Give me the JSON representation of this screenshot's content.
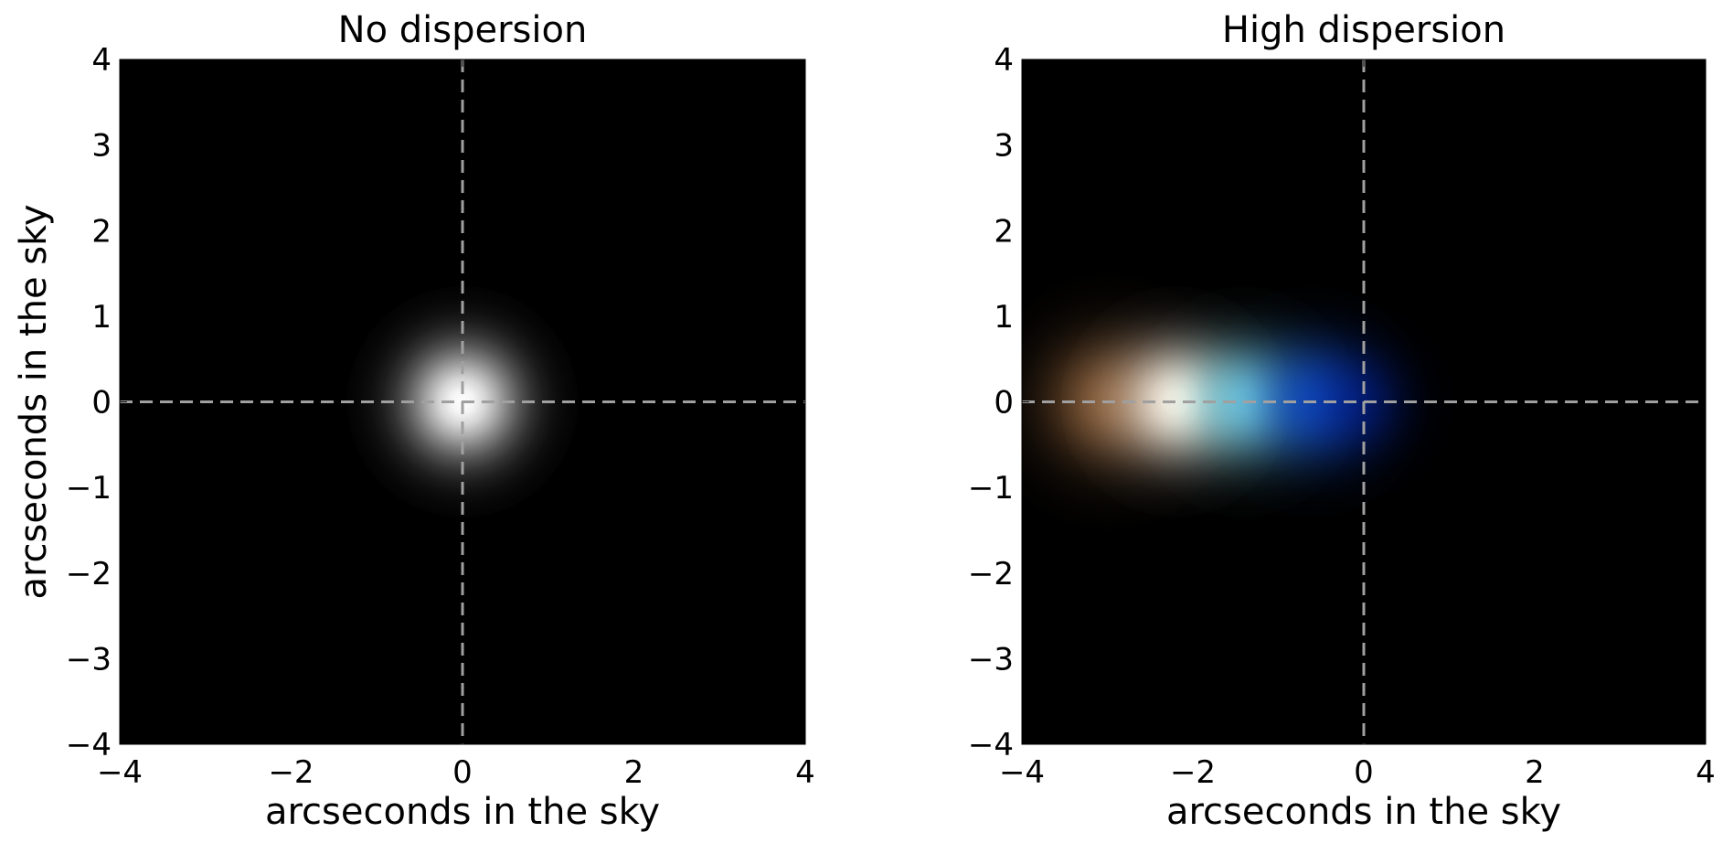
{
  "figure": {
    "background_color": "#ffffff",
    "plot_background_color": "#000000",
    "crosshair_color": "#a0a0a0",
    "crosshair_style": "dashed"
  },
  "chart_data": [
    {
      "type": "heatmap",
      "title": "No dispersion",
      "xlabel": "arcseconds in the sky",
      "ylabel": "arcseconds in the sky",
      "xlim": [
        -4,
        4
      ],
      "ylim": [
        -4,
        4
      ],
      "xticks": [
        -4,
        -2,
        0,
        2,
        4
      ],
      "yticks": [
        -4,
        -3,
        -2,
        -1,
        0,
        1,
        2,
        3,
        4
      ],
      "xtick_labels": [
        "−4",
        "−2",
        "0",
        "2",
        "4"
      ],
      "ytick_labels": [
        "4",
        "3",
        "2",
        "1",
        "0",
        "−1",
        "−2",
        "−3",
        "−4"
      ],
      "crosshair": {
        "x": 0,
        "y": 0
      },
      "grid": false,
      "sources": [
        {
          "name": "",
          "color": "#ffffff",
          "x": 0,
          "y": 0,
          "sigma_x": 0.45,
          "sigma_y": 0.45,
          "intensity": 1.0
        }
      ]
    },
    {
      "type": "heatmap",
      "title": "High dispersion",
      "xlabel": "arcseconds in the sky",
      "ylabel": "",
      "xlim": [
        -4,
        4
      ],
      "ylim": [
        -4,
        4
      ],
      "xticks": [
        -4,
        -2,
        0,
        2,
        4
      ],
      "yticks": [
        -4,
        -3,
        -2,
        -1,
        0,
        1,
        2,
        3,
        4
      ],
      "xtick_labels": [
        "−4",
        "−2",
        "0",
        "2",
        "4"
      ],
      "ytick_labels": [
        "4",
        "3",
        "2",
        "1",
        "0",
        "−1",
        "−2",
        "−3",
        "−4"
      ],
      "crosshair": {
        "x": 0,
        "y": 0
      },
      "grid": false,
      "sources": [
        {
          "name": "",
          "color": "#c0804a",
          "x": -3.0,
          "y": 0,
          "sigma_x": 0.5,
          "sigma_y": 0.5,
          "intensity": 0.65
        },
        {
          "name": "",
          "color": "#ffeede",
          "x": -2.2,
          "y": 0,
          "sigma_x": 0.45,
          "sigma_y": 0.45,
          "intensity": 1.0
        },
        {
          "name": "",
          "color": "#80e8f8",
          "x": -1.4,
          "y": 0,
          "sigma_x": 0.45,
          "sigma_y": 0.45,
          "intensity": 0.8
        },
        {
          "name": "",
          "color": "#1058e0",
          "x": -0.6,
          "y": 0,
          "sigma_x": 0.45,
          "sigma_y": 0.45,
          "intensity": 0.75
        },
        {
          "name": "",
          "color": "#001a9a",
          "x": -0.1,
          "y": 0,
          "sigma_x": 0.4,
          "sigma_y": 0.4,
          "intensity": 0.5
        }
      ]
    }
  ]
}
